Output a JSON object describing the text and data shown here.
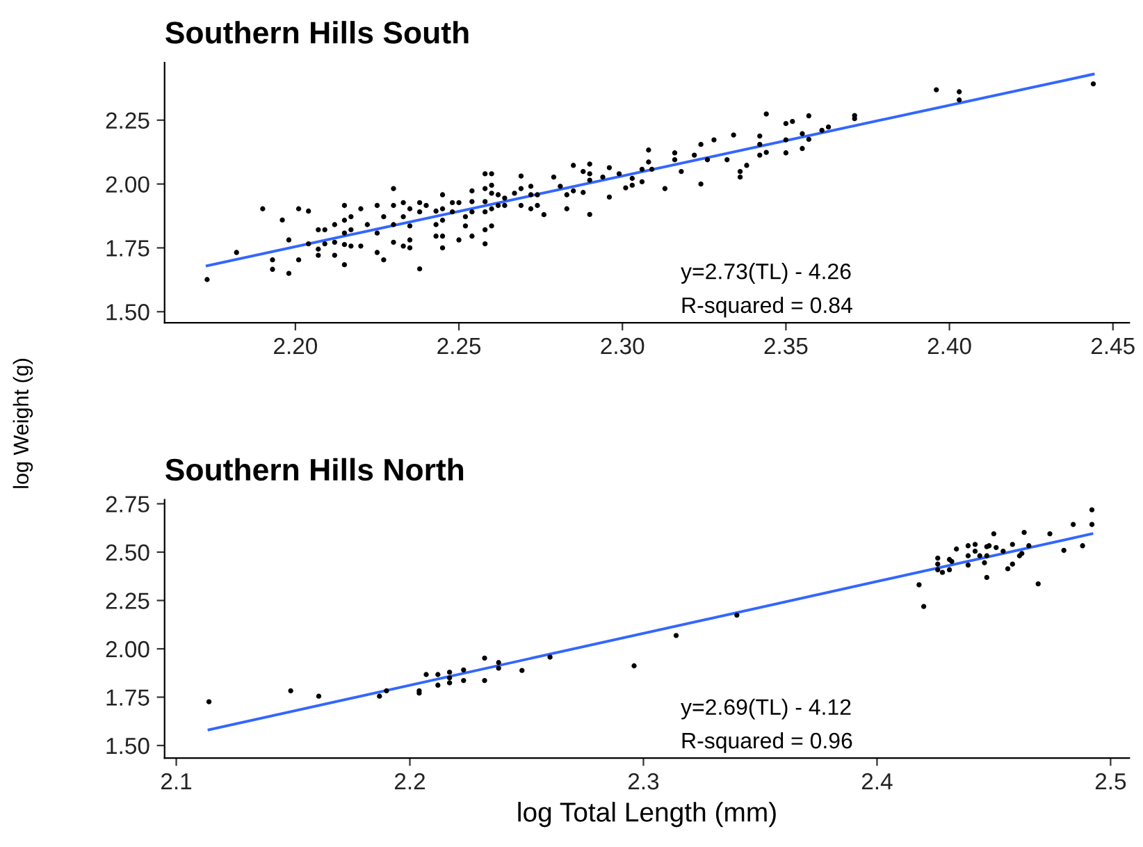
{
  "chart_data": [
    {
      "type": "scatter",
      "title": "Southern Hills South",
      "ylabel": "log Weight (g)",
      "grid": false,
      "xlim": [
        2.16,
        2.455
      ],
      "ylim": [
        1.457,
        2.475
      ],
      "xticks": [
        {
          "value": 2.2,
          "label": "2.20"
        },
        {
          "value": 2.25,
          "label": "2.25"
        },
        {
          "value": 2.3,
          "label": "2.30"
        },
        {
          "value": 2.35,
          "label": "2.35"
        },
        {
          "value": 2.4,
          "label": "2.40"
        },
        {
          "value": 2.45,
          "label": "2.45"
        }
      ],
      "yticks": [
        {
          "value": 1.5,
          "label": "1.50"
        },
        {
          "value": 1.75,
          "label": "1.75"
        },
        {
          "value": 2.0,
          "label": "2.00"
        },
        {
          "value": 2.25,
          "label": "2.25"
        }
      ],
      "annotations": [
        "y=2.73(TL) - 4.26",
        "R-squared = 0.84"
      ],
      "series": [
        {
          "marker": "circle",
          "color": "#000000",
          "x": [
            2.173,
            2.182,
            2.19,
            2.193,
            2.193,
            2.196,
            2.198,
            2.198,
            2.201,
            2.201,
            2.204,
            2.204,
            2.207,
            2.207,
            2.207,
            2.209,
            2.209,
            2.212,
            2.212,
            2.212,
            2.215,
            2.215,
            2.215,
            2.215,
            2.215,
            2.217,
            2.217,
            2.217,
            2.22,
            2.22,
            2.222,
            2.225,
            2.225,
            2.225,
            2.227,
            2.227,
            2.23,
            2.23,
            2.23,
            2.23,
            2.233,
            2.233,
            2.233,
            2.235,
            2.235,
            2.235,
            2.235,
            2.238,
            2.238,
            2.238,
            2.24,
            2.243,
            2.243,
            2.243,
            2.245,
            2.245,
            2.245,
            2.245,
            2.245,
            2.248,
            2.248,
            2.25,
            2.25,
            2.252,
            2.252,
            2.254,
            2.254,
            2.254,
            2.254,
            2.258,
            2.258,
            2.258,
            2.258,
            2.258,
            2.258,
            2.26,
            2.26,
            2.26,
            2.26,
            2.26,
            2.262,
            2.262,
            2.264,
            2.264,
            2.267,
            2.269,
            2.269,
            2.269,
            2.272,
            2.272,
            2.272,
            2.274,
            2.274,
            2.276,
            2.279,
            2.281,
            2.283,
            2.283,
            2.285,
            2.285,
            2.288,
            2.288,
            2.29,
            2.29,
            2.29,
            2.29,
            2.294,
            2.296,
            2.296,
            2.299,
            2.301,
            2.303,
            2.303,
            2.306,
            2.306,
            2.308,
            2.308,
            2.309,
            2.313,
            2.316,
            2.316,
            2.318,
            2.322,
            2.324,
            2.324,
            2.326,
            2.328,
            2.332,
            2.334,
            2.336,
            2.336,
            2.338,
            2.342,
            2.342,
            2.342,
            2.344,
            2.344,
            2.35,
            2.35,
            2.35,
            2.352,
            2.355,
            2.355,
            2.357,
            2.357,
            2.361,
            2.363,
            2.371,
            2.371,
            2.396,
            2.403,
            2.403,
            2.444
          ],
          "values": [
            1.626,
            1.732,
            1.903,
            1.703,
            1.666,
            1.859,
            1.781,
            1.65,
            1.903,
            1.703,
            1.894,
            1.766,
            1.821,
            1.745,
            1.721,
            1.821,
            1.766,
            1.841,
            1.772,
            1.721,
            1.916,
            1.858,
            1.808,
            1.763,
            1.684,
            1.872,
            1.821,
            1.757,
            1.903,
            1.757,
            1.841,
            1.916,
            1.808,
            1.732,
            1.872,
            1.703,
            1.982,
            1.916,
            1.841,
            1.772,
            1.927,
            1.872,
            1.757,
            1.903,
            1.836,
            1.781,
            1.75,
            1.927,
            1.891,
            1.668,
            1.916,
            1.894,
            1.841,
            1.796,
            1.958,
            1.903,
            1.858,
            1.796,
            1.75,
            1.927,
            1.891,
            1.927,
            1.781,
            1.872,
            1.836,
            1.973,
            1.931,
            1.891,
            1.796,
            2.04,
            1.982,
            1.931,
            1.891,
            1.821,
            1.766,
            2.04,
            1.995,
            1.964,
            1.903,
            1.836,
            1.958,
            1.916,
            1.945,
            1.916,
            1.964,
            2.031,
            1.982,
            1.916,
            1.991,
            1.958,
            1.903,
            1.958,
            1.916,
            1.88,
            2.027,
            1.991,
            1.958,
            1.903,
            2.073,
            1.973,
            2.049,
            1.967,
            2.078,
            2.04,
            2.015,
            1.881,
            2.027,
            2.064,
            1.949,
            2.04,
            1.985,
            1.995,
            2.022,
            2.058,
            2.009,
            2.133,
            2.086,
            2.058,
            1.982,
            2.122,
            2.095,
            2.049,
            2.113,
            2.155,
            2.0,
            2.095,
            2.173,
            2.095,
            2.192,
            2.049,
            2.027,
            2.073,
            2.188,
            2.155,
            2.113,
            2.274,
            2.124,
            2.237,
            2.173,
            2.122,
            2.245,
            2.197,
            2.139,
            2.267,
            2.175,
            2.21,
            2.223,
            2.268,
            2.256,
            2.369,
            2.361,
            2.329,
            2.392
          ]
        },
        {
          "type": "line",
          "marker": "none",
          "color": "#3366ff",
          "x": [
            2.173,
            2.444
          ],
          "values": [
            1.68,
            2.43
          ]
        }
      ]
    },
    {
      "type": "scatter",
      "title": "Southern Hills North",
      "xlabel": "log Total Length (mm)",
      "grid": false,
      "xlim": [
        2.095,
        2.508
      ],
      "ylim": [
        1.435,
        2.771
      ],
      "xticks": [
        2.1,
        2.2,
        2.3,
        2.4,
        2.5
      ],
      "yticks": [
        {
          "value": 1.5,
          "label": "1.50"
        },
        {
          "value": 1.75,
          "label": "1.75"
        },
        {
          "value": 2.0,
          "label": "2.00"
        },
        {
          "value": 2.25,
          "label": "2.25"
        },
        {
          "value": 2.5,
          "label": "2.50"
        },
        {
          "value": 2.75,
          "label": "2.75"
        }
      ],
      "annotations": [
        "y=2.69(TL) - 4.12",
        "R-squared = 0.96"
      ],
      "series": [
        {
          "marker": "circle",
          "color": "#000000",
          "x": [
            2.114,
            2.149,
            2.161,
            2.187,
            2.19,
            2.204,
            2.204,
            2.207,
            2.212,
            2.212,
            2.217,
            2.217,
            2.217,
            2.223,
            2.223,
            2.232,
            2.232,
            2.238,
            2.238,
            2.248,
            2.26,
            2.296,
            2.314,
            2.34,
            2.418,
            2.42,
            2.426,
            2.426,
            2.426,
            2.428,
            2.431,
            2.431,
            2.432,
            2.434,
            2.439,
            2.439,
            2.439,
            2.442,
            2.442,
            2.444,
            2.446,
            2.447,
            2.447,
            2.447,
            2.448,
            2.45,
            2.451,
            2.454,
            2.456,
            2.458,
            2.458,
            2.461,
            2.462,
            2.463,
            2.465,
            2.469,
            2.474,
            2.48,
            2.484,
            2.488,
            2.492,
            2.492
          ],
          "values": [
            1.726,
            1.783,
            1.755,
            1.755,
            1.783,
            1.783,
            1.771,
            1.867,
            1.867,
            1.812,
            1.879,
            1.85,
            1.824,
            1.891,
            1.836,
            1.952,
            1.836,
            1.929,
            1.9,
            1.888,
            1.957,
            1.912,
            2.069,
            2.174,
            2.331,
            2.219,
            2.469,
            2.438,
            2.409,
            2.395,
            2.462,
            2.409,
            2.452,
            2.516,
            2.533,
            2.481,
            2.433,
            2.54,
            2.505,
            2.481,
            2.445,
            2.528,
            2.481,
            2.369,
            2.533,
            2.595,
            2.524,
            2.505,
            2.414,
            2.54,
            2.438,
            2.481,
            2.493,
            2.602,
            2.533,
            2.336,
            2.595,
            2.509,
            2.643,
            2.533,
            2.719,
            2.643
          ]
        },
        {
          "type": "line",
          "marker": "none",
          "color": "#3366ff",
          "x": [
            2.114,
            2.492
          ],
          "values": [
            1.581,
            2.595
          ]
        }
      ]
    }
  ]
}
